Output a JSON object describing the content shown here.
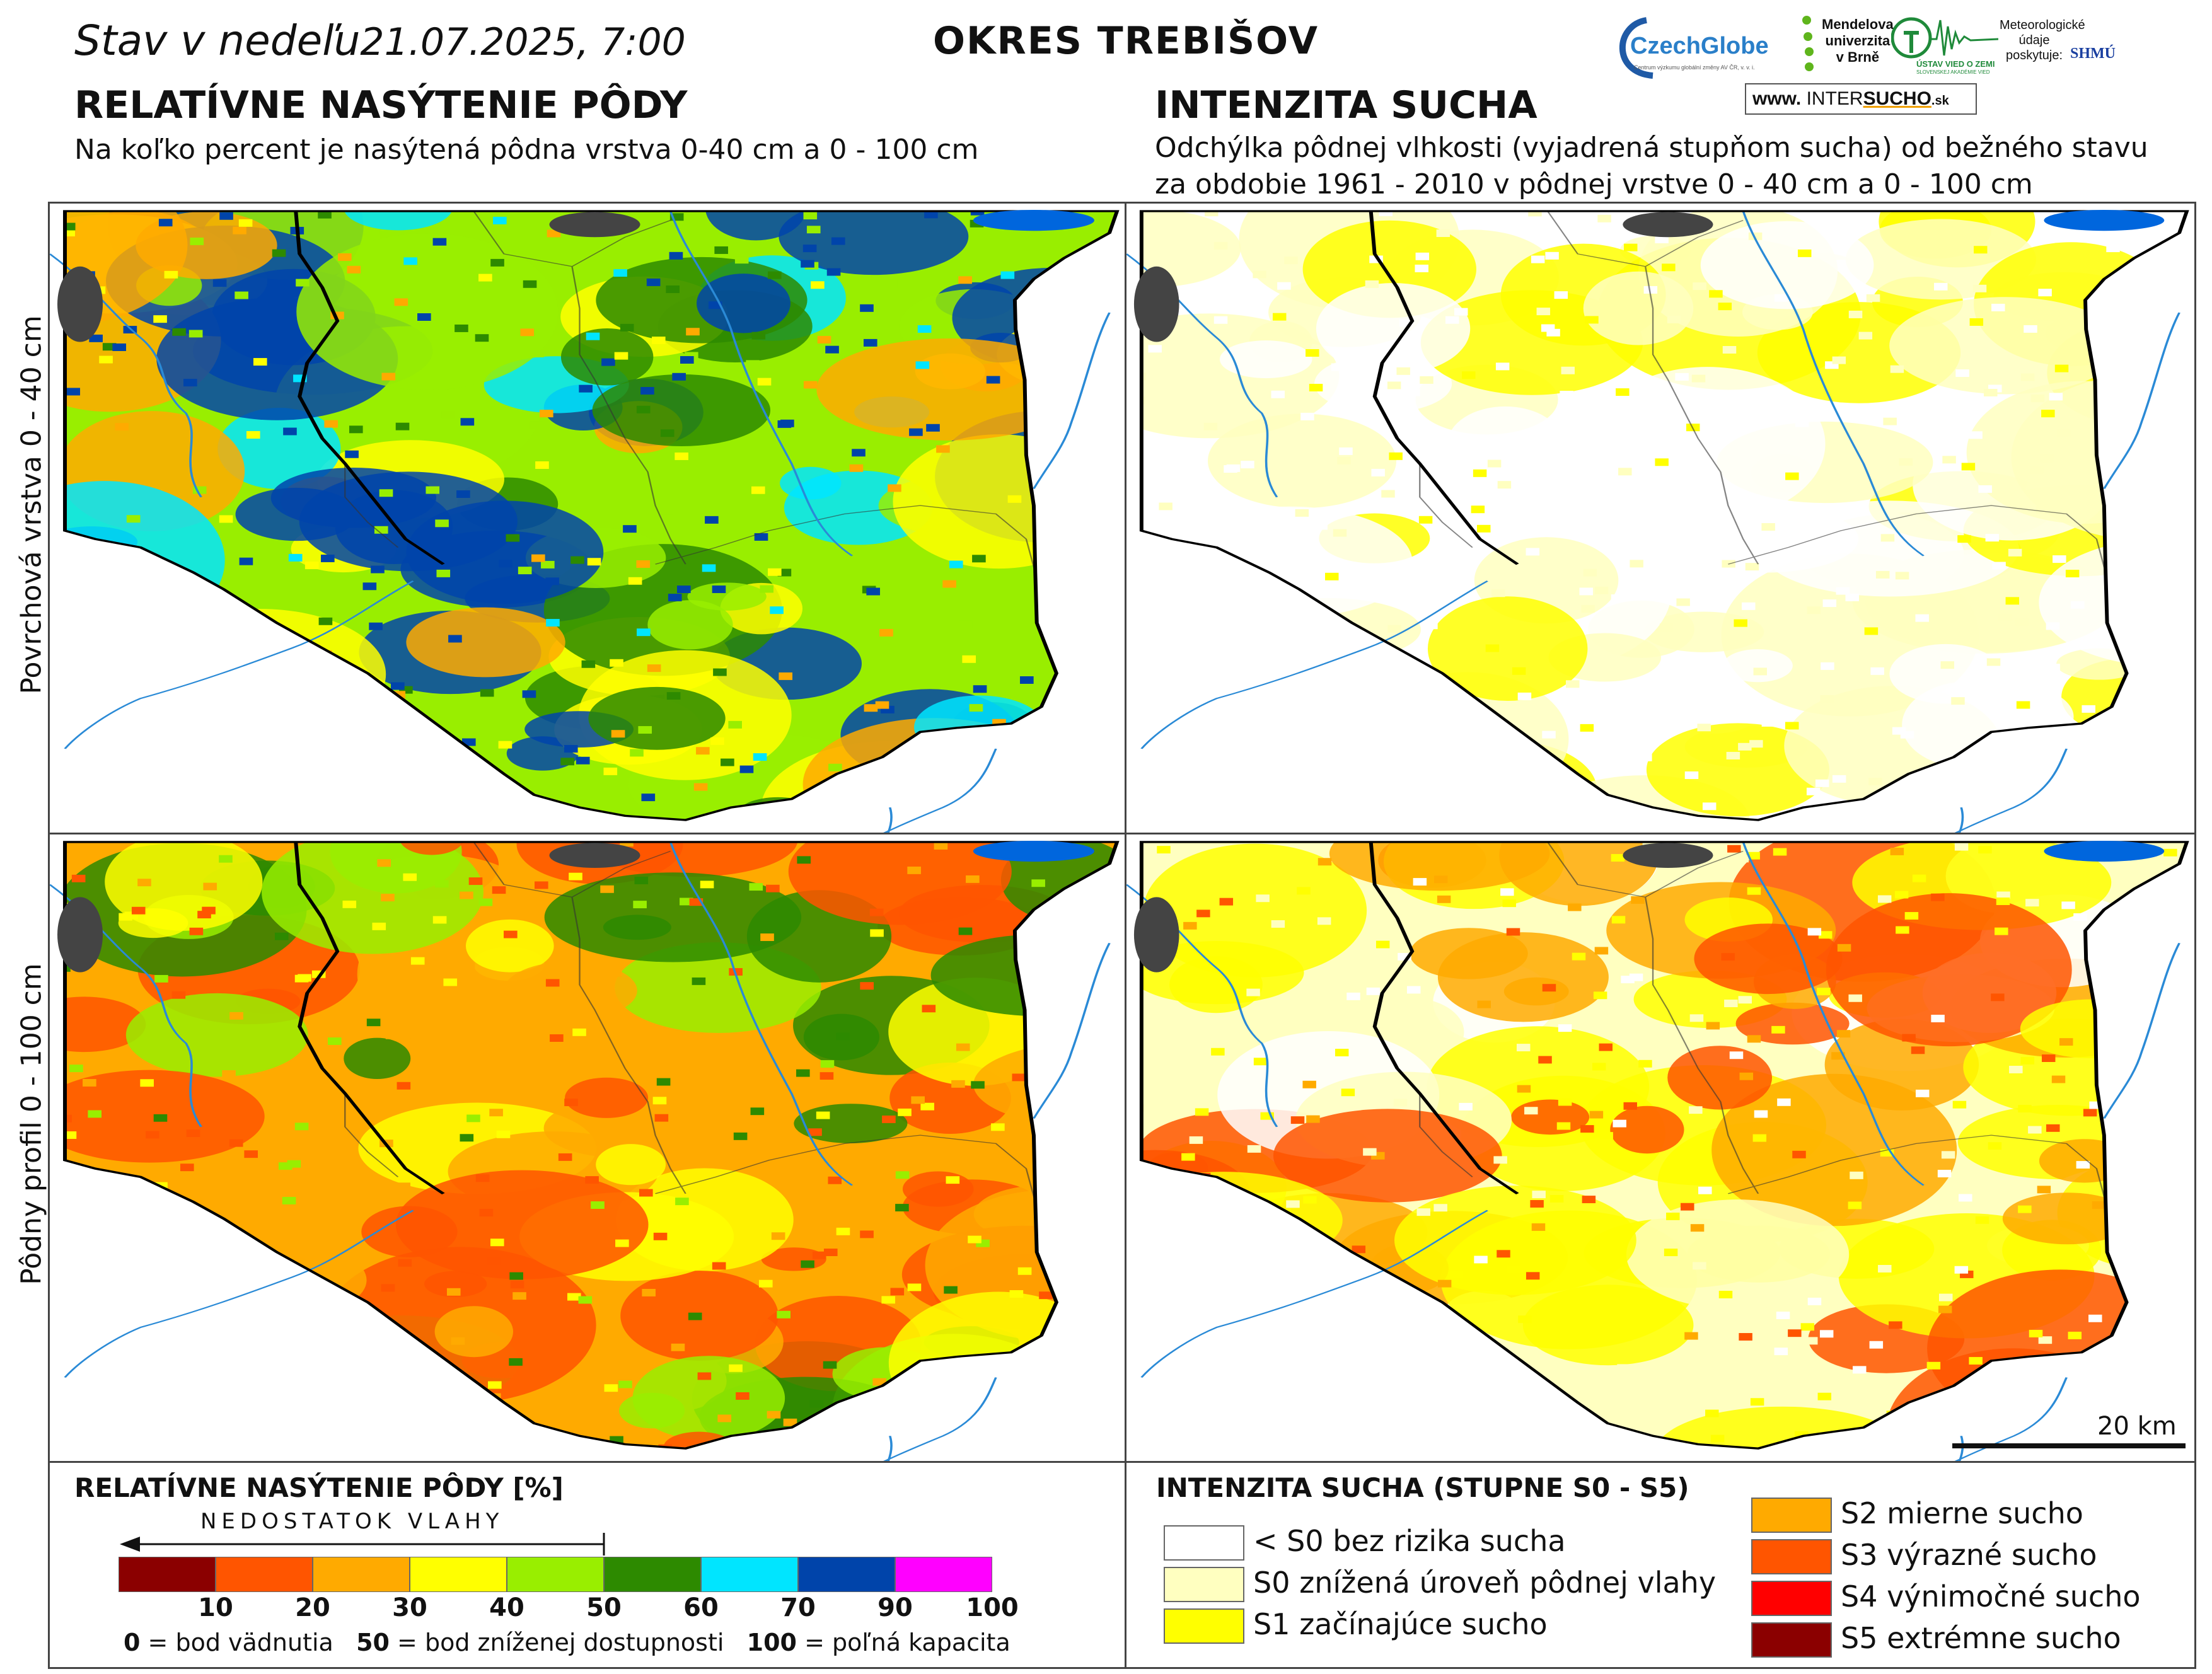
{
  "header": {
    "date_prefix": "Stav v nedeľu",
    "date_value": "21.07.2025, 7:00",
    "district": "OKRES  TREBIŠOV"
  },
  "left_section": {
    "title": "RELATÍVNE NASÝTENIE PÔDY",
    "subtitle": "Na koľko percent je nasýtená pôdna vrstva 0-40 cm a 0 - 100 cm"
  },
  "right_section": {
    "title": "INTENZITA SUCHA",
    "subtitle_line1": "Odchýlka pôdnej vlhkosti (vyjadrená stupňom sucha) od bežného stavu",
    "subtitle_line2": "za obdobie 1961 - 2010 v pôdnej vrstve 0 - 40 cm a 0 - 100 cm"
  },
  "row_labels": {
    "top": "Povrchová vrstva 0 - 40 cm",
    "bottom": "Pôdny profil 0 - 100 cm"
  },
  "logos": {
    "czechglobe": "CzechGlobe",
    "czechglobe_sub": "Centrum výzkumu globální změny AV ČR, v. v. i.",
    "mendel_line1": "Mendelova",
    "mendel_line2": "univerzita",
    "mendel_line3": "v Brně",
    "uvz_label": "ÚSTAV VIED O ZEMI",
    "uvz_sub": "SLOVENSKEJ AKADÉMIE VIED",
    "meteo_line1": "Meteorologické",
    "meteo_line2": "údaje",
    "meteo_line3": "poskytuje:",
    "shmu": "SHMÚ",
    "site_prefix": "www.",
    "site_inter": "INTER",
    "site_sucho": "SUCHO",
    "site_suffix": ".sk"
  },
  "scale_bar": {
    "label": "20 km"
  },
  "saturation_legend": {
    "title": "RELATÍVNE NASÝTENIE PÔDY [%]",
    "arrow_label": "NEDOSTATOK VLAHY",
    "classes": [
      {
        "color": "#8b0000"
      },
      {
        "color": "#ff5500"
      },
      {
        "color": "#ffaa00"
      },
      {
        "color": "#ffff00"
      },
      {
        "color": "#99ee00"
      },
      {
        "color": "#2d8a00"
      },
      {
        "color": "#00e5ff"
      },
      {
        "color": "#0044aa"
      },
      {
        "color": "#ff00ff"
      }
    ],
    "ticks": [
      "10",
      "20",
      "30",
      "40",
      "50",
      "60",
      "70",
      "90",
      "100"
    ],
    "footnote": {
      "n0": "0",
      "t0": " = bod vädnutia",
      "n50": "50",
      "t50": " = bod zníženej dostupnosti",
      "n100": "100",
      "t100": " = poľná kapacita"
    }
  },
  "drought_legend": {
    "title": "INTENZITA SUCHA (STUPNE S0 - S5)",
    "items": [
      {
        "label": "< S0 bez rizika sucha",
        "color": "#ffffff"
      },
      {
        "label": "S0 znížená úroveň pôdnej vlahy",
        "color": "#ffffc0"
      },
      {
        "label": "S1 začínajúce sucho",
        "color": "#ffff00"
      },
      {
        "label": "S2 mierne sucho",
        "color": "#ffaa00"
      },
      {
        "label": "S3 výrazné sucho",
        "color": "#ff5500"
      },
      {
        "label": "S4 výnimočné sucho",
        "color": "#ff0000"
      },
      {
        "label": "S5 extrémne sucho",
        "color": "#8b0000"
      }
    ]
  },
  "map_colors": {
    "topleft_base": "#99ee00",
    "bottomleft_base": "#ffaa00",
    "topright_base": "#ffffff",
    "bottomright_base": "#ffffc0",
    "river": "#2a8ad6",
    "lake": "#0066dd",
    "town": "#444444",
    "border": "#000000"
  }
}
